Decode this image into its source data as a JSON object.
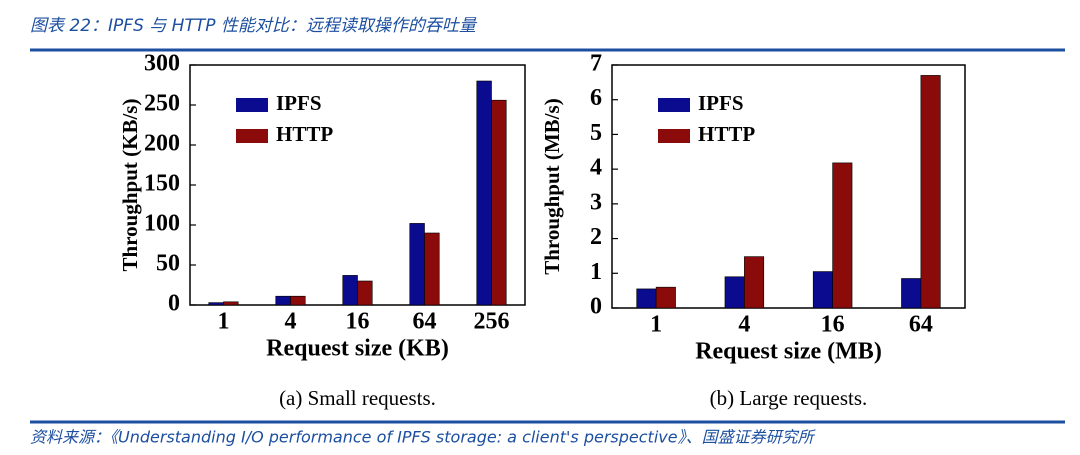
{
  "title": "图表 22：IPFS 与 HTTP 性能对比：远程读取操作的吞吐量",
  "source": "资料来源：《Understanding I/O performance of IPFS storage: a client's perspective》、国盛证券研究所",
  "chart_data": [
    {
      "type": "bar",
      "caption": "(a)  Small requests.",
      "xlabel": "Request size (KB)",
      "ylabel": "Throughput (KB/s)",
      "categories": [
        "1",
        "4",
        "16",
        "64",
        "256"
      ],
      "series": [
        {
          "name": "IPFS",
          "color": "#0b0b8f",
          "values": [
            3,
            11,
            37,
            102,
            280
          ]
        },
        {
          "name": "HTTP",
          "color": "#8b0a0a",
          "values": [
            4,
            11,
            30,
            90,
            256
          ]
        }
      ],
      "ylim": [
        0,
        300
      ],
      "yticks": [
        0,
        50,
        100,
        150,
        200,
        250,
        300
      ],
      "legend": "upper left"
    },
    {
      "type": "bar",
      "caption": "(b)  Large requests.",
      "xlabel": "Request size (MB)",
      "ylabel": "Throughput (MB/s)",
      "categories": [
        "1",
        "4",
        "16",
        "64"
      ],
      "series": [
        {
          "name": "IPFS",
          "color": "#0b0b8f",
          "values": [
            0.55,
            0.9,
            1.05,
            0.85
          ]
        },
        {
          "name": "HTTP",
          "color": "#8b0a0a",
          "values": [
            0.6,
            1.48,
            4.18,
            6.7
          ]
        }
      ],
      "ylim": [
        0,
        7
      ],
      "yticks": [
        0,
        1,
        2,
        3,
        4,
        5,
        6,
        7
      ],
      "legend": "upper left"
    }
  ]
}
